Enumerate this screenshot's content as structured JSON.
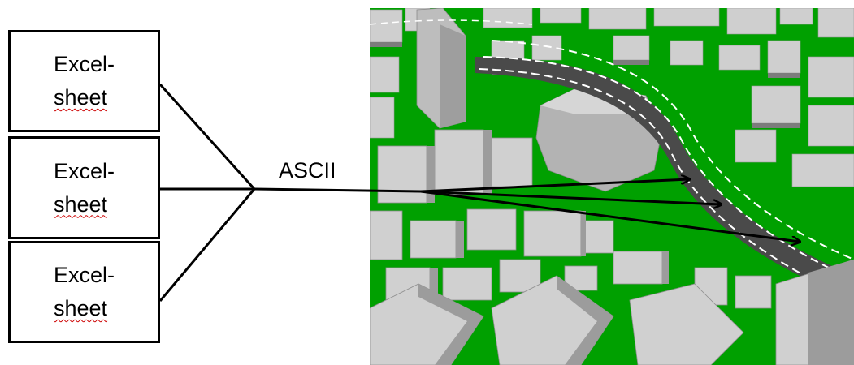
{
  "sources": [
    {
      "line1": "Excel-",
      "line2": "sheet"
    },
    {
      "line1": "Excel-",
      "line2": "sheet"
    },
    {
      "line1": "Excel-",
      "line2": "sheet"
    }
  ],
  "connector_label": "ASCII",
  "colors": {
    "ground": "#00a000",
    "building": "#c8c8c8",
    "building_dark": "#8c8c8c",
    "track": "#3c3c3c",
    "stroke": "#000000"
  }
}
